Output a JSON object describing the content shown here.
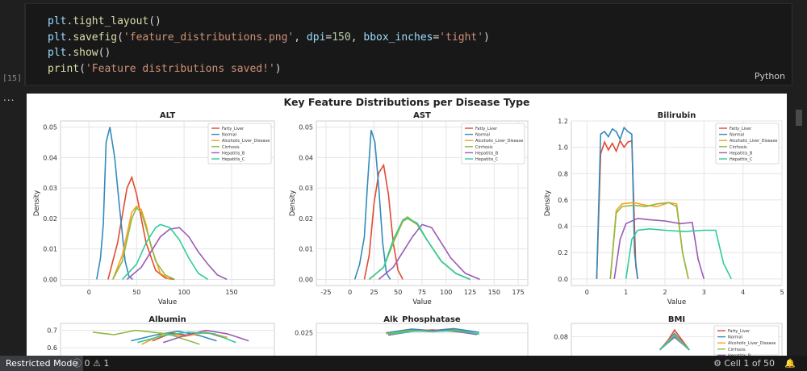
{
  "code_cell": {
    "lines": [
      [
        {
          "t": "plt",
          "c": "kw"
        },
        {
          "t": ".",
          "c": ""
        },
        {
          "t": "tight_layout",
          "c": "fn"
        },
        {
          "t": "()",
          "c": ""
        }
      ],
      [
        {
          "t": "plt",
          "c": "kw"
        },
        {
          "t": ".",
          "c": ""
        },
        {
          "t": "savefig",
          "c": "fn"
        },
        {
          "t": "(",
          "c": ""
        },
        {
          "t": "'feature_distributions.png'",
          "c": "str"
        },
        {
          "t": ", ",
          "c": ""
        },
        {
          "t": "dpi",
          "c": "kw"
        },
        {
          "t": "=",
          "c": ""
        },
        {
          "t": "150",
          "c": "num"
        },
        {
          "t": ", ",
          "c": ""
        },
        {
          "t": "bbox_inches",
          "c": "kw"
        },
        {
          "t": "=",
          "c": ""
        },
        {
          "t": "'tight'",
          "c": "str"
        },
        {
          "t": ")",
          "c": ""
        }
      ],
      [
        {
          "t": "plt",
          "c": "kw"
        },
        {
          "t": ".",
          "c": ""
        },
        {
          "t": "show",
          "c": "fn"
        },
        {
          "t": "()",
          "c": ""
        }
      ],
      [
        {
          "t": "print",
          "c": "fn"
        },
        {
          "t": "(",
          "c": ""
        },
        {
          "t": "'Feature distributions saved!'",
          "c": "str"
        },
        {
          "t": ")",
          "c": ""
        }
      ]
    ],
    "exec_count": "[15]",
    "language": "Python"
  },
  "output_more": "...",
  "figure": {
    "suptitle": "Key Feature Distributions per Disease Type",
    "legend": [
      "Fatty_Liver",
      "Normal",
      "Alcoholic_Liver_Disease",
      "Cirrhosis",
      "Hepatitis_B",
      "Hepatitis_C"
    ],
    "colors": [
      "#e24a33",
      "#348abd",
      "#ff9e1a",
      "#8eba42",
      "#9b59b6",
      "#2ecc9a"
    ]
  },
  "chart_data": [
    {
      "type": "line",
      "title": "ALT",
      "xlabel": "Value",
      "ylabel": "Density",
      "xlim": [
        -30,
        195
      ],
      "ylim": [
        -0.002,
        0.052
      ],
      "xticks": [
        0,
        50,
        100,
        150
      ],
      "yticks": [
        0,
        0.01,
        0.02,
        0.03,
        0.04,
        0.05
      ],
      "ytick_labels": [
        "0.00",
        "0.01",
        "0.02",
        "0.03",
        "0.04",
        "0.05"
      ],
      "grid": true,
      "legend_loc": "top-right",
      "series": [
        {
          "name": "Fatty_Liver",
          "x": [
            20,
            30,
            40,
            45,
            50,
            60,
            70,
            80,
            90
          ],
          "y": [
            0,
            0.012,
            0.03,
            0.0335,
            0.028,
            0.012,
            0.003,
            0.0005,
            0
          ]
        },
        {
          "name": "Normal",
          "x": [
            8,
            12,
            15,
            18,
            22,
            27,
            32,
            38,
            42,
            46
          ],
          "y": [
            0,
            0.007,
            0.018,
            0.045,
            0.05,
            0.04,
            0.024,
            0.006,
            0.001,
            0
          ]
        },
        {
          "name": "Alcoholic_Liver_Disease",
          "x": [
            25,
            35,
            45,
            50,
            55,
            60,
            65,
            75,
            85
          ],
          "y": [
            0,
            0.008,
            0.022,
            0.024,
            0.023,
            0.018,
            0.011,
            0.002,
            0
          ]
        },
        {
          "name": "Cirrhosis",
          "x": [
            25,
            35,
            45,
            50,
            55,
            60,
            70,
            80,
            90
          ],
          "y": [
            0,
            0.006,
            0.02,
            0.0235,
            0.022,
            0.017,
            0.006,
            0.0015,
            0
          ]
        },
        {
          "name": "Hepatitis_B",
          "x": [
            40,
            55,
            65,
            75,
            85,
            95,
            105,
            115,
            125,
            135,
            145
          ],
          "y": [
            0,
            0.004,
            0.009,
            0.014,
            0.0165,
            0.017,
            0.014,
            0.009,
            0.005,
            0.0015,
            0
          ]
        },
        {
          "name": "Hepatitis_C",
          "x": [
            35,
            50,
            60,
            70,
            75,
            85,
            95,
            105,
            115,
            125
          ],
          "y": [
            0,
            0.005,
            0.012,
            0.017,
            0.018,
            0.017,
            0.013,
            0.007,
            0.002,
            0
          ]
        }
      ]
    },
    {
      "type": "line",
      "title": "AST",
      "xlabel": "Value",
      "ylabel": "Density",
      "xlim": [
        -35,
        185
      ],
      "ylim": [
        -0.002,
        0.052
      ],
      "xticks": [
        -25,
        0,
        25,
        50,
        75,
        100,
        125,
        150,
        175
      ],
      "yticks": [
        0,
        0.01,
        0.02,
        0.03,
        0.04,
        0.05
      ],
      "ytick_labels": [
        "0.00",
        "0.01",
        "0.02",
        "0.03",
        "0.04",
        "0.05"
      ],
      "grid": true,
      "legend_loc": "top-right",
      "series": [
        {
          "name": "Fatty_Liver",
          "x": [
            15,
            20,
            25,
            30,
            35,
            40,
            45,
            50,
            55
          ],
          "y": [
            0,
            0.008,
            0.025,
            0.035,
            0.0375,
            0.028,
            0.012,
            0.003,
            0
          ]
        },
        {
          "name": "Normal",
          "x": [
            5,
            10,
            15,
            18,
            22,
            26,
            30,
            34,
            38,
            42
          ],
          "y": [
            0,
            0.005,
            0.014,
            0.03,
            0.049,
            0.045,
            0.03,
            0.012,
            0.002,
            0
          ]
        },
        {
          "name": "Alcoholic_Liver_Disease",
          "x": [
            20,
            35,
            45,
            55,
            60,
            70,
            80,
            95,
            110,
            125
          ],
          "y": [
            0,
            0.004,
            0.012,
            0.019,
            0.02,
            0.018,
            0.013,
            0.006,
            0.002,
            0
          ]
        },
        {
          "name": "Cirrhosis",
          "x": [
            20,
            35,
            45,
            55,
            60,
            70,
            80,
            95,
            110,
            125
          ],
          "y": [
            0,
            0.004,
            0.012,
            0.0195,
            0.0205,
            0.018,
            0.013,
            0.006,
            0.002,
            0
          ]
        },
        {
          "name": "Hepatitis_B",
          "x": [
            30,
            45,
            55,
            65,
            75,
            85,
            95,
            105,
            120,
            135
          ],
          "y": [
            0,
            0.004,
            0.009,
            0.014,
            0.018,
            0.017,
            0.012,
            0.007,
            0.002,
            0
          ]
        },
        {
          "name": "Hepatitis_C",
          "x": [
            20,
            35,
            45,
            55,
            60,
            70,
            80,
            95,
            110,
            125
          ],
          "y": [
            0,
            0.004,
            0.013,
            0.0195,
            0.02,
            0.0185,
            0.013,
            0.006,
            0.002,
            0
          ]
        }
      ]
    },
    {
      "type": "line",
      "title": "Bilirubin",
      "xlabel": "Value",
      "ylabel": "Density",
      "xlim": [
        -0.4,
        5.0
      ],
      "ylim": [
        -0.05,
        1.2
      ],
      "xticks": [
        0,
        1,
        2,
        3,
        4,
        5
      ],
      "yticks": [
        0,
        0.2,
        0.4,
        0.6,
        0.8,
        1.0,
        1.2
      ],
      "ytick_labels": [
        "0.0",
        "0.2",
        "0.4",
        "0.6",
        "0.8",
        "1.0",
        "1.2"
      ],
      "grid": true,
      "legend_loc": "top-right",
      "series": [
        {
          "name": "Fatty_Liver",
          "x": [
            0.25,
            0.35,
            0.45,
            0.55,
            0.65,
            0.75,
            0.85,
            0.95,
            1.05,
            1.15,
            1.25,
            1.3
          ],
          "y": [
            0,
            0.95,
            1.04,
            0.98,
            1.03,
            0.97,
            1.05,
            1.0,
            1.04,
            1.05,
            0.1,
            0
          ]
        },
        {
          "name": "Normal",
          "x": [
            0.25,
            0.35,
            0.45,
            0.55,
            0.65,
            0.75,
            0.85,
            0.95,
            1.05,
            1.15,
            1.22,
            1.3
          ],
          "y": [
            0,
            1.1,
            1.12,
            1.08,
            1.14,
            1.12,
            1.06,
            1.15,
            1.12,
            1.1,
            0.2,
            0
          ]
        },
        {
          "name": "Alcoholic_Liver_Disease",
          "x": [
            0.6,
            0.75,
            0.9,
            1.2,
            1.5,
            1.8,
            2.1,
            2.3,
            2.45,
            2.6
          ],
          "y": [
            0,
            0.52,
            0.57,
            0.58,
            0.56,
            0.55,
            0.58,
            0.57,
            0.2,
            0
          ]
        },
        {
          "name": "Cirrhosis",
          "x": [
            0.6,
            0.75,
            0.9,
            1.2,
            1.5,
            1.8,
            2.1,
            2.3,
            2.45,
            2.6
          ],
          "y": [
            0,
            0.5,
            0.55,
            0.56,
            0.55,
            0.57,
            0.58,
            0.55,
            0.2,
            0
          ]
        },
        {
          "name": "Hepatitis_B",
          "x": [
            0.7,
            0.85,
            1.0,
            1.3,
            1.6,
            2.0,
            2.4,
            2.7,
            2.85,
            3.0
          ],
          "y": [
            0,
            0.3,
            0.42,
            0.46,
            0.45,
            0.44,
            0.42,
            0.43,
            0.15,
            0
          ]
        },
        {
          "name": "Hepatitis_C",
          "x": [
            1.0,
            1.15,
            1.3,
            1.6,
            2.0,
            2.5,
            3.0,
            3.3,
            3.5,
            3.7
          ],
          "y": [
            0,
            0.3,
            0.37,
            0.38,
            0.37,
            0.36,
            0.37,
            0.37,
            0.12,
            0
          ]
        }
      ]
    },
    {
      "type": "line",
      "title": "Albumin",
      "partial": true,
      "ylim": [
        0.55,
        0.74
      ],
      "yticks": [
        0.6,
        0.7
      ],
      "ytick_labels": [
        "0.6",
        "0.7"
      ],
      "grid": true,
      "series": [
        {
          "name": "Fatty_Liver",
          "x": [
            0.43,
            0.52,
            0.6,
            0.68,
            0.76
          ],
          "y": [
            0.64,
            0.685,
            0.67,
            0.69,
            0.66
          ]
        },
        {
          "name": "Normal",
          "x": [
            0.33,
            0.45,
            0.55,
            0.65,
            0.73
          ],
          "y": [
            0.64,
            0.675,
            0.695,
            0.67,
            0.64
          ]
        },
        {
          "name": "Alcoholic_Liver_Disease",
          "x": [
            0.38,
            0.48,
            0.58,
            0.68,
            0.78
          ],
          "y": [
            0.62,
            0.68,
            0.665,
            0.69,
            0.66
          ]
        },
        {
          "name": "Cirrhosis",
          "x": [
            0.15,
            0.25,
            0.35,
            0.5,
            0.65
          ],
          "y": [
            0.69,
            0.675,
            0.7,
            0.68,
            0.62
          ]
        },
        {
          "name": "Hepatitis_B",
          "x": [
            0.48,
            0.58,
            0.68,
            0.78,
            0.88
          ],
          "y": [
            0.63,
            0.67,
            0.7,
            0.68,
            0.64
          ]
        },
        {
          "name": "Hepatitis_C",
          "x": [
            0.36,
            0.48,
            0.6,
            0.72,
            0.82
          ],
          "y": [
            0.63,
            0.67,
            0.69,
            0.68,
            0.63
          ]
        }
      ]
    },
    {
      "type": "line",
      "title": "Alk_Phosphatase",
      "partial": true,
      "ylim": [
        0.015,
        0.029
      ],
      "yticks": [
        0.025
      ],
      "ytick_labels": [
        "0.025"
      ],
      "grid": true,
      "series": [
        {
          "name": "Fatty_Liver",
          "x": [
            0.35,
            0.45,
            0.55,
            0.65,
            0.75
          ],
          "y": [
            0.0245,
            0.0262,
            0.0255,
            0.0265,
            0.0248
          ]
        },
        {
          "name": "Normal",
          "x": [
            0.33,
            0.45,
            0.55,
            0.65,
            0.77
          ],
          "y": [
            0.025,
            0.0266,
            0.026,
            0.0268,
            0.0252
          ]
        },
        {
          "name": "Alcoholic_Liver_Disease",
          "x": [
            0.34,
            0.45,
            0.55,
            0.66,
            0.76
          ],
          "y": [
            0.0242,
            0.0258,
            0.0263,
            0.0255,
            0.0246
          ]
        },
        {
          "name": "Cirrhosis",
          "x": [
            0.33,
            0.44,
            0.55,
            0.66,
            0.77
          ],
          "y": [
            0.0246,
            0.026,
            0.0255,
            0.0262,
            0.0244
          ]
        },
        {
          "name": "Hepatitis_B",
          "x": [
            0.34,
            0.45,
            0.55,
            0.65,
            0.76
          ],
          "y": [
            0.024,
            0.0256,
            0.0262,
            0.0258,
            0.0243
          ]
        },
        {
          "name": "Hepatitis_C",
          "x": [
            0.35,
            0.46,
            0.56,
            0.66,
            0.77
          ],
          "y": [
            0.0244,
            0.0258,
            0.0256,
            0.026,
            0.0245
          ]
        }
      ]
    },
    {
      "type": "line",
      "title": "BMI",
      "partial": true,
      "ylim": [
        0.05,
        0.1
      ],
      "yticks": [
        0.08
      ],
      "ytick_labels": [
        "0.08"
      ],
      "grid": true,
      "legend_loc": "top-right",
      "series": [
        {
          "name": "Fatty_Liver",
          "x": [
            0.42,
            0.46,
            0.49,
            0.52,
            0.56
          ],
          "y": [
            0.06,
            0.075,
            0.09,
            0.077,
            0.06
          ]
        },
        {
          "name": "Normal",
          "x": [
            0.42,
            0.46,
            0.49,
            0.52,
            0.56
          ],
          "y": [
            0.06,
            0.074,
            0.085,
            0.074,
            0.06
          ]
        },
        {
          "name": "Alcoholic_Liver_Disease",
          "x": [
            0.42,
            0.46,
            0.49,
            0.52,
            0.56
          ],
          "y": [
            0.06,
            0.073,
            0.083,
            0.073,
            0.06
          ]
        },
        {
          "name": "Cirrhosis",
          "x": [
            0.42,
            0.46,
            0.49,
            0.52,
            0.56
          ],
          "y": [
            0.06,
            0.072,
            0.081,
            0.072,
            0.06
          ]
        },
        {
          "name": "Hepatitis_B",
          "x": [
            0.42,
            0.46,
            0.49,
            0.52,
            0.56
          ],
          "y": [
            0.06,
            0.071,
            0.079,
            0.071,
            0.06
          ]
        },
        {
          "name": "Hepatitis_C",
          "x": [
            0.42,
            0.46,
            0.49,
            0.52,
            0.56
          ],
          "y": [
            0.06,
            0.072,
            0.082,
            0.072,
            0.06
          ]
        }
      ]
    }
  ],
  "status_bar": {
    "restricted_mode": "Restricted Mode",
    "errors": "0",
    "warnings": "1",
    "cell_position": "Cell 1 of 50"
  }
}
